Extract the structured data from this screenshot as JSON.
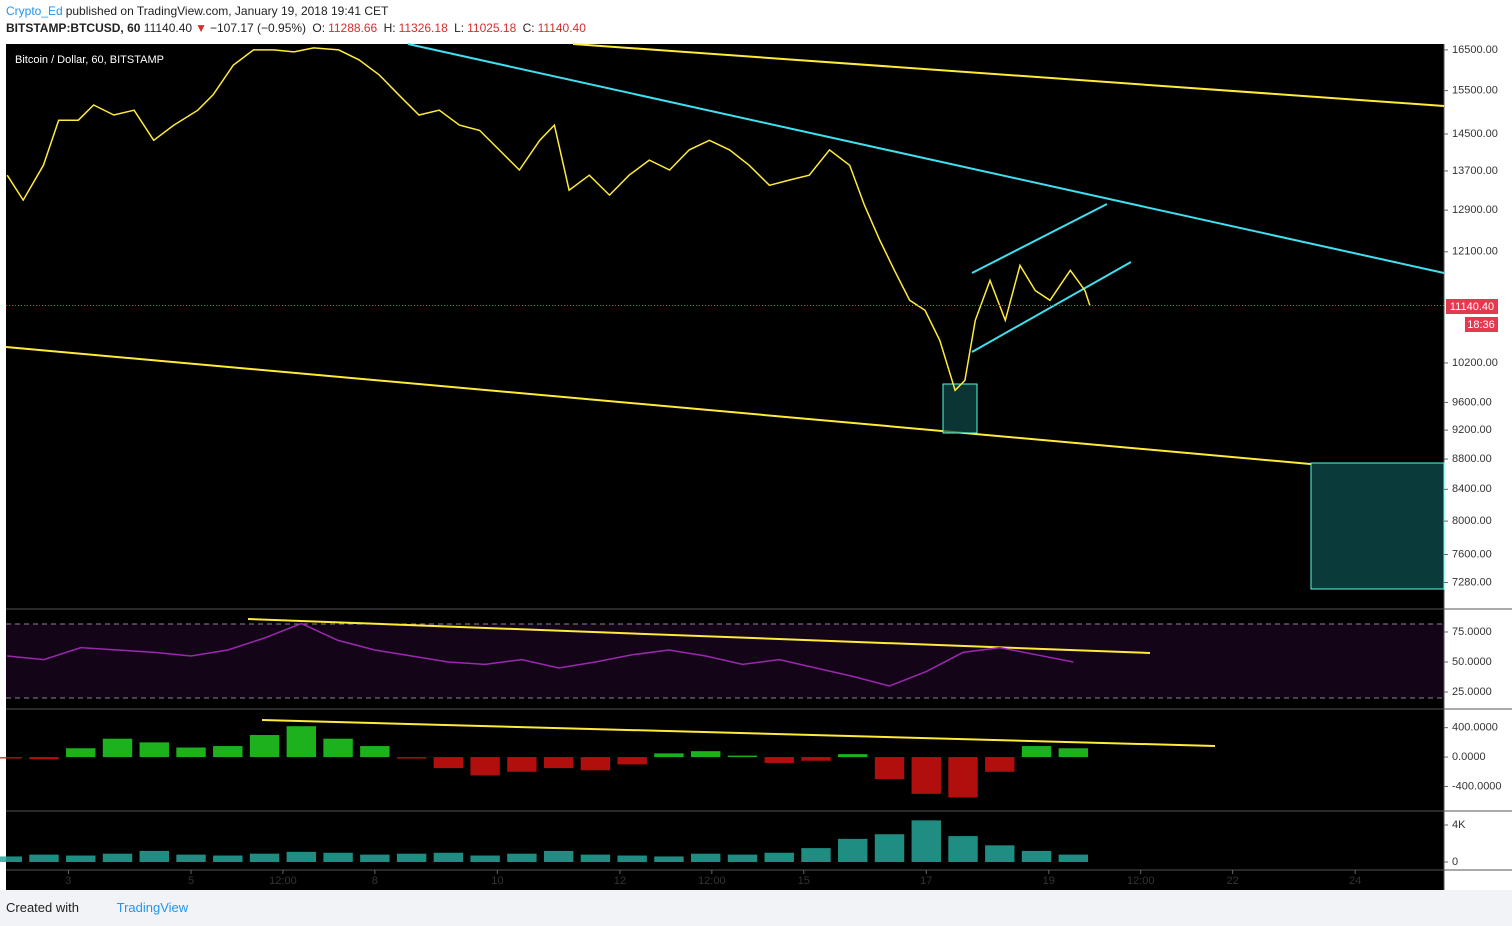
{
  "header": {
    "author": "Crypto_Ed",
    "published": "published on TradingView.com, January 19, 2018 19:41 CET",
    "symbol": "BITSTAMP:BTCUSD, 60",
    "last": "11140.40",
    "change_arrow": "▼",
    "change": "−107.17 (−0.95%)",
    "open_label": "O:",
    "open": "11288.66",
    "high_label": "H:",
    "high": "11326.18",
    "low_label": "L:",
    "low": "11025.18",
    "close_label": "C:",
    "close": "11140.40"
  },
  "price_tag": "11140.40",
  "countdown": "18:36",
  "footer": {
    "created_with": "Created with",
    "brand": "TradingView"
  },
  "chart_data": [
    {
      "type": "line",
      "title": "Bitcoin / Dollar, 60, BITSTAMP",
      "color": "#ffeb3b",
      "log": true,
      "x": [
        2.0,
        2.26,
        2.59,
        2.84,
        3.16,
        3.41,
        3.74,
        4.07,
        4.39,
        4.72,
        5.11,
        5.36,
        5.69,
        6.02,
        6.35,
        6.68,
        7.0,
        7.41,
        7.74,
        8.07,
        8.39,
        8.72,
        9.05,
        9.38,
        9.71,
        10.03,
        10.36,
        10.69,
        10.93,
        11.17,
        11.5,
        11.83,
        12.15,
        12.48,
        12.81,
        13.13,
        13.46,
        13.79,
        14.11,
        14.44,
        14.77,
        15.09,
        15.42,
        15.75,
        15.99,
        16.24,
        16.48,
        16.73,
        16.98,
        17.22,
        17.47,
        17.63,
        17.8,
        18.04,
        18.29,
        18.53,
        18.78,
        19.02,
        19.35,
        19.59,
        19.67
      ],
      "values": [
        13610,
        13100,
        13820,
        14810,
        14810,
        15160,
        14930,
        15040,
        14360,
        14700,
        15040,
        15400,
        16120,
        16500,
        16500,
        16450,
        16550,
        16500,
        16250,
        15880,
        15400,
        14930,
        15040,
        14700,
        14580,
        14150,
        13720,
        14360,
        14700,
        13300,
        13610,
        13200,
        13610,
        13930,
        13720,
        14150,
        14360,
        14150,
        13820,
        13400,
        13510,
        13610,
        14150,
        13820,
        13000,
        12320,
        11760,
        11230,
        11060,
        10560,
        9780,
        9930,
        10890,
        11580,
        10890,
        11850,
        11400,
        11230,
        11760,
        11400,
        11140.4
      ],
      "xlim": [
        1.98,
        25.45
      ],
      "ylim": [
        7000,
        16650
      ],
      "yticks": [
        {
          "value": 16500,
          "label": "16500.00"
        },
        {
          "value": 15500,
          "label": "15500.00"
        },
        {
          "value": 14500,
          "label": "14500.00"
        },
        {
          "value": 13700,
          "label": "13700.00"
        },
        {
          "value": 12900,
          "label": "12900.00"
        },
        {
          "value": 12100,
          "label": "12100.00"
        },
        {
          "value": 10200,
          "label": "10200.00"
        },
        {
          "value": 9600,
          "label": "9600.00"
        },
        {
          "value": 9200,
          "label": "9200.00"
        },
        {
          "value": 8800,
          "label": "8800.00"
        },
        {
          "value": 8400,
          "label": "8400.00"
        },
        {
          "value": 8000,
          "label": "8000.00"
        },
        {
          "value": 7600,
          "label": "7600.00"
        },
        {
          "value": 7280,
          "label": "7280.00"
        }
      ]
    },
    {
      "type": "line",
      "color": "#9c27b0",
      "x": [
        2.0,
        2.6,
        3.2,
        3.8,
        4.4,
        5.0,
        5.6,
        6.2,
        6.8,
        7.4,
        8.0,
        8.6,
        9.2,
        9.8,
        10.4,
        11.0,
        11.6,
        12.2,
        12.8,
        13.4,
        14.0,
        14.6,
        15.2,
        15.8,
        16.4,
        17.0,
        17.6,
        18.2,
        18.8,
        19.4
      ],
      "values": [
        55,
        52,
        62,
        60,
        58,
        55,
        60,
        70,
        82,
        68,
        60,
        55,
        50,
        48,
        52,
        45,
        50,
        56,
        60,
        55,
        48,
        52,
        45,
        38,
        30,
        42,
        58,
        62,
        56,
        50
      ],
      "xlim": [
        1.98,
        25.45
      ],
      "ylim": [
        11.7,
        93.3
      ],
      "yticks": [
        {
          "value": 75,
          "label": "75.0000"
        },
        {
          "value": 50,
          "label": "50.0000"
        },
        {
          "value": 25,
          "label": "25.0000"
        }
      ]
    },
    {
      "type": "bar",
      "color": "#22d022",
      "negative_color": "#d01010",
      "x": [
        2.0,
        2.6,
        3.2,
        3.8,
        4.4,
        5.0,
        5.6,
        6.2,
        6.8,
        7.4,
        8.0,
        8.6,
        9.2,
        9.8,
        10.4,
        11.0,
        11.6,
        12.2,
        12.8,
        13.4,
        14.0,
        14.6,
        15.2,
        15.8,
        16.4,
        17.0,
        17.6,
        18.2,
        18.8,
        19.4
      ],
      "values": [
        -20,
        -30,
        120,
        250,
        200,
        130,
        150,
        300,
        420,
        250,
        150,
        -20,
        -150,
        -250,
        -200,
        -150,
        -180,
        -100,
        50,
        80,
        20,
        -80,
        -50,
        40,
        -300,
        -500,
        -550,
        -200,
        150,
        120
      ],
      "xlim": [
        1.98,
        25.45
      ],
      "ylim": [
        -720,
        613
      ],
      "yticks": [
        {
          "value": 400,
          "label": "400.0000"
        },
        {
          "value": 0,
          "label": "0.0000"
        },
        {
          "value": -400,
          "label": "-400.0000"
        }
      ]
    },
    {
      "type": "bar",
      "color": "#26a69a",
      "x": [
        2.0,
        2.6,
        3.2,
        3.8,
        4.4,
        5.0,
        5.6,
        6.2,
        6.8,
        7.4,
        8.0,
        8.6,
        9.2,
        9.8,
        10.4,
        11.0,
        11.6,
        12.2,
        12.8,
        13.4,
        14.0,
        14.6,
        15.2,
        15.8,
        16.4,
        17.0,
        17.6,
        18.2,
        18.8,
        19.4
      ],
      "values": [
        600,
        800,
        700,
        900,
        1200,
        800,
        700,
        900,
        1100,
        1000,
        800,
        900,
        1000,
        700,
        900,
        1200,
        800,
        700,
        600,
        900,
        800,
        1000,
        1500,
        2500,
        3000,
        4500,
        2800,
        1800,
        1200,
        800
      ],
      "xlim": [
        1.98,
        25.45
      ],
      "ylim": [
        -865,
        5405
      ],
      "yticks": [
        {
          "value": 4000,
          "label": "4K"
        },
        0
      ],
      "xticks": [
        3,
        5,
        {
          "value": 6.5,
          "label": "12:00"
        },
        8,
        10,
        12,
        {
          "value": 13.5,
          "label": "12:00"
        },
        15,
        17,
        19,
        {
          "value": 20.5,
          "label": "12:00"
        },
        22,
        24
      ]
    }
  ]
}
